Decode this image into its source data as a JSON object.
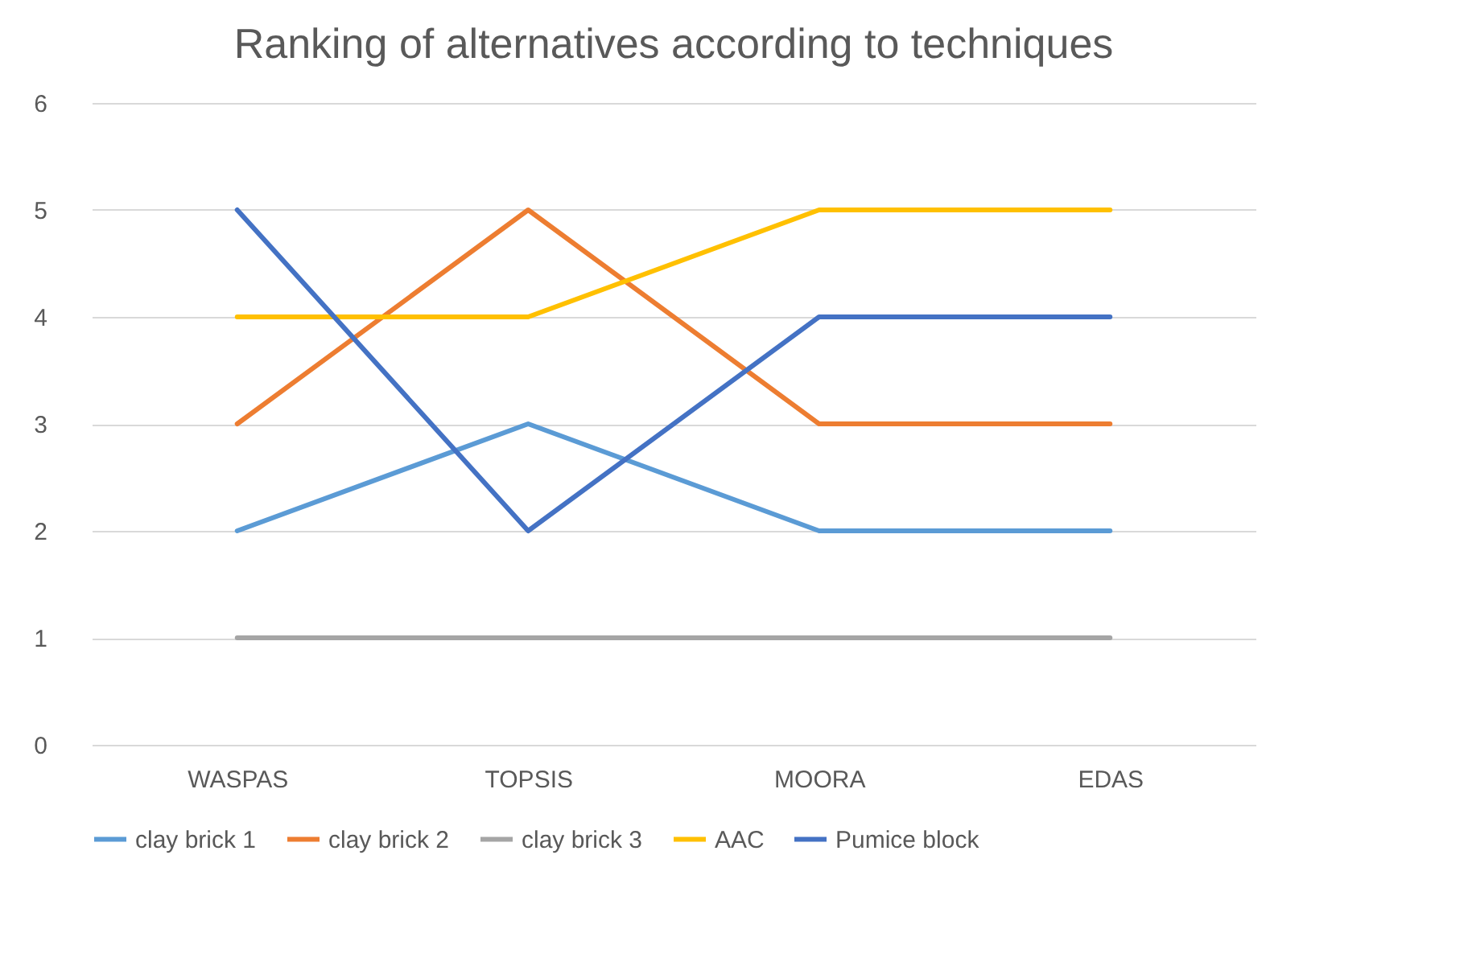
{
  "chart_data": {
    "type": "line",
    "title": "Ranking of alternatives according to techniques",
    "categories": [
      "WASPAS",
      "TOPSIS",
      "MOORA",
      "EDAS"
    ],
    "series": [
      {
        "name": "clay brick 1",
        "color": "#5b9bd5",
        "values": [
          2,
          3,
          2,
          2
        ]
      },
      {
        "name": "clay brick 2",
        "color": "#ed7d31",
        "values": [
          3,
          5,
          3,
          3
        ]
      },
      {
        "name": "clay brick 3",
        "color": "#a5a5a5",
        "values": [
          1,
          1,
          1,
          1
        ]
      },
      {
        "name": "AAC",
        "color": "#ffc000",
        "values": [
          4,
          4,
          5,
          5
        ]
      },
      {
        "name": "Pumice block",
        "color": "#4472c4",
        "values": [
          5,
          2,
          4,
          4
        ]
      }
    ],
    "ylim": [
      0,
      6
    ],
    "yticks": [
      0,
      1,
      2,
      3,
      4,
      5,
      6
    ],
    "grid": "y",
    "legend": "bottom",
    "marker": "none",
    "line_style": "solid"
  }
}
